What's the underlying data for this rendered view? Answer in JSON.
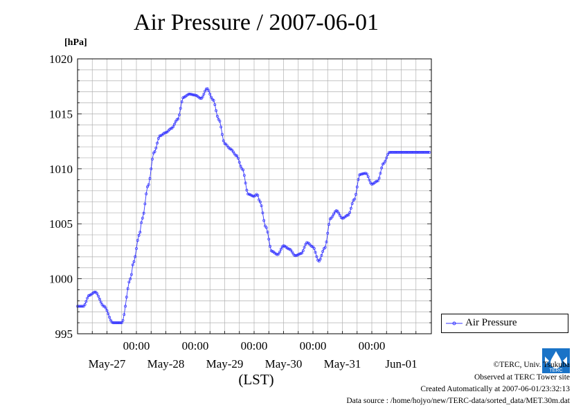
{
  "page": {
    "title": "Air Pressure / 2007-06-01",
    "credits": {
      "copyright": "©TERC, Univ. Tsukuba",
      "observed": "Observed at TERC Tower site",
      "created": "Created Automatically at 2007-06-01/23:32:13",
      "source": "Data source : /home/hojyo/new/TERC-data/sorted_data/MET.30m.dat"
    },
    "logo_text": "TERC"
  },
  "chart_data": {
    "type": "line",
    "title": "Air Pressure / 2007-06-01",
    "ylabel": "[hPa]",
    "xlabel": "(LST)",
    "ylim": [
      995,
      1020
    ],
    "yticks": [
      995,
      1000,
      1005,
      1010,
      1015,
      1020
    ],
    "xlim_days": [
      0,
      6
    ],
    "xtick_time_labels": [
      "00:00",
      "00:00",
      "00:00",
      "00:00",
      "00:00"
    ],
    "xtick_date_labels": [
      "May-27",
      "May-28",
      "May-29",
      "May-30",
      "May-31",
      "Jun-01"
    ],
    "grid": true,
    "legend_position": "right",
    "line_color": "#3333ff",
    "series": [
      {
        "name": "Air Pressure",
        "x_day": [
          0,
          0.1,
          0.2,
          0.3,
          0.45,
          0.6,
          0.75,
          0.9,
          0.95,
          1.05,
          1.1,
          1.2,
          1.3,
          1.4,
          1.5,
          1.6,
          1.7,
          1.8,
          1.9,
          2.0,
          2.1,
          2.2,
          2.3,
          2.4,
          2.5,
          2.6,
          2.7,
          2.8,
          2.9,
          3.0,
          3.05,
          3.1,
          3.2,
          3.3,
          3.4,
          3.5,
          3.6,
          3.7,
          3.8,
          3.9,
          4.0,
          4.1,
          4.2,
          4.3,
          4.4,
          4.5,
          4.6,
          4.7,
          4.8,
          4.9,
          5.0,
          5.1,
          5.2,
          5.3,
          5.4,
          5.5,
          5.6,
          5.7,
          5.8,
          5.9,
          5.99
        ],
        "values": [
          997.5,
          997.5,
          998.5,
          998.8,
          997.5,
          996,
          996,
          1000,
          1001.5,
          1004,
          1005.5,
          1008.5,
          1011.5,
          1013,
          1013.3,
          1013.7,
          1014.5,
          1016.5,
          1016.8,
          1016.7,
          1016.4,
          1017.3,
          1016.3,
          1014.5,
          1012.3,
          1011.8,
          1011.2,
          1010,
          1007.7,
          1007.5,
          1007.7,
          1007,
          1004.7,
          1002.5,
          1002.2,
          1003,
          1002.7,
          1002.1,
          1002.3,
          1003.3,
          1002.9,
          1001.6,
          1002.8,
          1005.5,
          1006.2,
          1005.5,
          1005.8,
          1007.2,
          1009.5,
          1009.6,
          1008.6,
          1008.9,
          1010.5,
          1011.5,
          1011.5,
          1011.5,
          1011.5,
          1011.5,
          1011.5,
          1011.5,
          1011.5
        ]
      }
    ]
  }
}
